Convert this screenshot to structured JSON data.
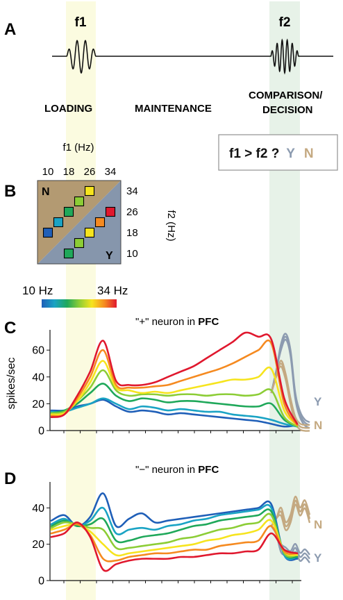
{
  "panelA": {
    "letter": "A",
    "f1_label": "f1",
    "f2_label": "f2",
    "stages": [
      "LOADING",
      "MAINTENANCE",
      "COMPARISON/",
      "DECISION"
    ],
    "question": {
      "text": "f1 > f2 ?",
      "yes": "Y",
      "no": "N"
    }
  },
  "panelB": {
    "letter": "B",
    "f1_axis": "f1 (Hz)",
    "f2_axis": "f2 (Hz)",
    "f1_ticks": [
      "10",
      "18",
      "26",
      "34"
    ],
    "f2_ticks": [
      "34",
      "26",
      "18",
      "10"
    ],
    "corner_N": "N",
    "corner_Y": "Y",
    "colorbar": {
      "low": "10 Hz",
      "high": "34 Hz"
    },
    "stimulus_pairs": [
      {
        "f1": 10,
        "f2": 18,
        "region": "N"
      },
      {
        "f1": 14,
        "f2": 22,
        "region": "N"
      },
      {
        "f1": 18,
        "f2": 26,
        "region": "N"
      },
      {
        "f1": 22,
        "f2": 30,
        "region": "N"
      },
      {
        "f1": 26,
        "f2": 34,
        "region": "N"
      },
      {
        "f1": 18,
        "f2": 10,
        "region": "Y"
      },
      {
        "f1": 22,
        "f2": 14,
        "region": "Y"
      },
      {
        "f1": 26,
        "f2": 18,
        "region": "Y"
      },
      {
        "f1": 30,
        "f2": 22,
        "region": "Y"
      },
      {
        "f1": 34,
        "f2": 26,
        "region": "Y"
      }
    ],
    "colors": {
      "N_region": "#b39a72",
      "Y_region": "#8696ac"
    }
  },
  "colors": {
    "loading_band": "#fbfbe0",
    "decision_band": "#e7f2e8",
    "Y_trace": "#8c9bb0",
    "N_trace": "#c4a981"
  },
  "chart_data": [
    {
      "type": "line",
      "letter": "C",
      "title_prefix": "\"+\" neuron in ",
      "title_bold": "PFC",
      "ylabel": "spikes/sec",
      "ylim": [
        0,
        72
      ],
      "yticks": [
        "0",
        "20",
        "40",
        "60"
      ],
      "end_labels": [
        "Y",
        "N"
      ],
      "series": [
        {
          "f1": 10,
          "values": [
            15,
            15,
            18,
            20,
            23,
            18,
            14,
            15,
            14,
            12,
            13,
            12,
            11,
            10,
            9,
            8,
            7,
            5,
            3,
            4
          ]
        },
        {
          "f1": 14,
          "values": [
            14,
            14,
            17,
            20,
            24,
            20,
            16,
            18,
            17,
            15,
            16,
            15,
            14,
            14,
            12,
            11,
            10,
            8,
            5,
            3
          ]
        },
        {
          "f1": 18,
          "values": [
            13,
            15,
            20,
            28,
            35,
            26,
            22,
            24,
            23,
            21,
            22,
            22,
            21,
            20,
            19,
            18,
            18,
            20,
            8,
            3
          ]
        },
        {
          "f1": 22,
          "values": [
            13,
            14,
            22,
            32,
            45,
            30,
            26,
            27,
            27,
            26,
            27,
            27,
            26,
            27,
            27,
            26,
            27,
            30,
            10,
            3
          ]
        },
        {
          "f1": 26,
          "values": [
            12,
            13,
            22,
            36,
            52,
            32,
            30,
            28,
            29,
            28,
            30,
            32,
            34,
            36,
            38,
            38,
            40,
            46,
            15,
            4
          ]
        },
        {
          "f1": 30,
          "values": [
            11,
            12,
            24,
            40,
            60,
            34,
            32,
            32,
            33,
            34,
            37,
            40,
            43,
            46,
            50,
            55,
            60,
            65,
            20,
            4
          ]
        },
        {
          "f1": 34,
          "values": [
            10,
            12,
            26,
            44,
            67,
            37,
            34,
            34,
            36,
            40,
            44,
            48,
            54,
            60,
            66,
            73,
            70,
            68,
            24,
            5
          ]
        }
      ],
      "endings": {
        "Y": [
          28,
          44,
          62,
          70,
          58,
          26,
          12,
          6,
          4
        ],
        "N": [
          28,
          40,
          50,
          40,
          22,
          8,
          3,
          2,
          2
        ]
      }
    },
    {
      "type": "line",
      "letter": "D",
      "title_prefix": "\"−\" neuron in ",
      "title_bold": "PFC",
      "ylabel": "",
      "ylim": [
        0,
        52
      ],
      "yticks": [
        "0",
        "20",
        "40"
      ],
      "end_labels": [
        "N",
        "Y"
      ],
      "series": [
        {
          "f1": 10,
          "values": [
            33,
            36,
            30,
            35,
            48,
            30,
            34,
            37,
            32,
            33,
            34,
            35,
            36,
            37,
            38,
            39,
            40,
            42,
            14,
            12
          ]
        },
        {
          "f1": 14,
          "values": [
            31,
            34,
            30,
            33,
            40,
            26,
            28,
            29,
            28,
            30,
            31,
            33,
            34,
            36,
            37,
            38,
            39,
            40,
            14,
            13
          ]
        },
        {
          "f1": 18,
          "values": [
            30,
            33,
            30,
            31,
            34,
            22,
            22,
            24,
            25,
            26,
            28,
            30,
            31,
            33,
            34,
            35,
            36,
            38,
            15,
            13
          ]
        },
        {
          "f1": 22,
          "values": [
            29,
            32,
            31,
            29,
            28,
            18,
            18,
            19,
            20,
            21,
            23,
            24,
            26,
            28,
            29,
            31,
            32,
            36,
            15,
            14
          ]
        },
        {
          "f1": 26,
          "values": [
            28,
            30,
            31,
            27,
            20,
            14,
            15,
            16,
            17,
            18,
            19,
            20,
            22,
            23,
            25,
            26,
            28,
            33,
            16,
            14
          ]
        },
        {
          "f1": 30,
          "values": [
            26,
            28,
            31,
            25,
            12,
            11,
            13,
            14,
            15,
            15,
            16,
            17,
            17,
            19,
            20,
            21,
            22,
            30,
            16,
            15
          ]
        },
        {
          "f1": 34,
          "values": [
            24,
            26,
            32,
            24,
            6,
            9,
            11,
            12,
            12,
            12,
            13,
            13,
            14,
            15,
            15,
            16,
            17,
            26,
            17,
            15
          ]
        }
      ],
      "endings": {
        "Y": [
          30,
          26,
          18,
          16,
          14,
          18,
          13,
          15,
          12
        ],
        "N": [
          30,
          34,
          38,
          30,
          34,
          44,
          38,
          42,
          34
        ]
      }
    }
  ]
}
